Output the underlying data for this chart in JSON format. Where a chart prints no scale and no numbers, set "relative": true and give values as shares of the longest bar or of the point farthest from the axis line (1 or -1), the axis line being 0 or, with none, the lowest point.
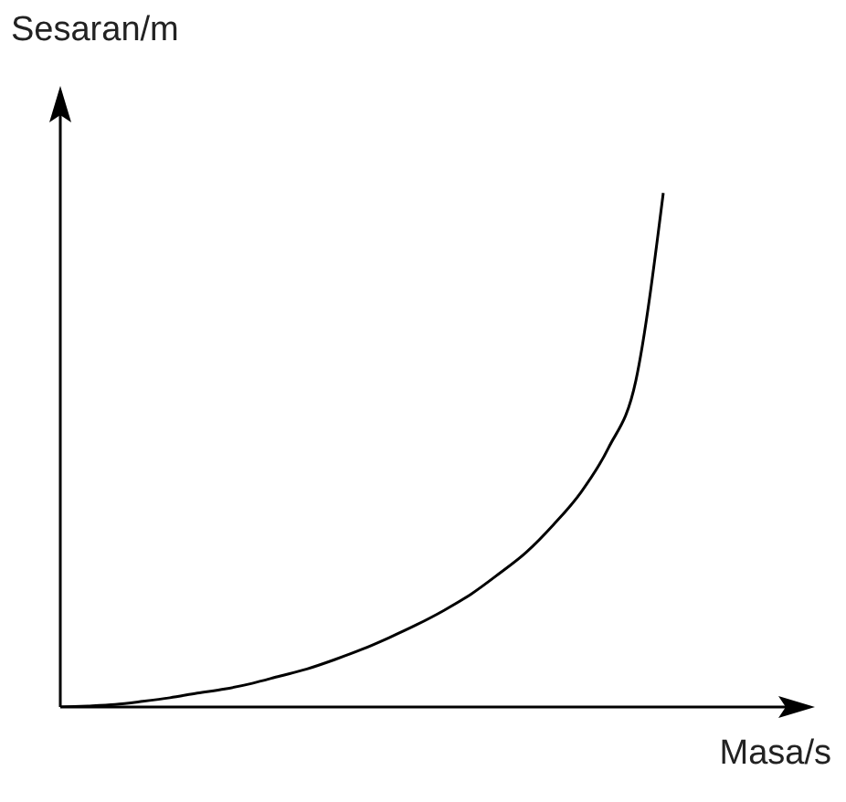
{
  "chart_data": {
    "type": "line",
    "relative": true,
    "xlabel": "Masa/s",
    "ylabel": "Sesaran/m",
    "categories": [
      null,
      null,
      null,
      null,
      null,
      null,
      null,
      null,
      null,
      null,
      null,
      null,
      null,
      null,
      null,
      null,
      null,
      null,
      null,
      null,
      null,
      null,
      null,
      null,
      null,
      null,
      null,
      null
    ],
    "series": [
      {
        "color": "#000000",
        "values": [
          0,
          0.002,
          0.005,
          0.011,
          0.018,
          0.027,
          0.035,
          0.046,
          0.06,
          0.074,
          0.092,
          0.112,
          0.135,
          0.16,
          0.188,
          0.22,
          0.259,
          0.301,
          0.355,
          0.418,
          0.504,
          0.635,
          1,
          null,
          null,
          null,
          null,
          null
        ]
      }
    ],
    "marker": "none",
    "grid": false,
    "legend": false
  }
}
